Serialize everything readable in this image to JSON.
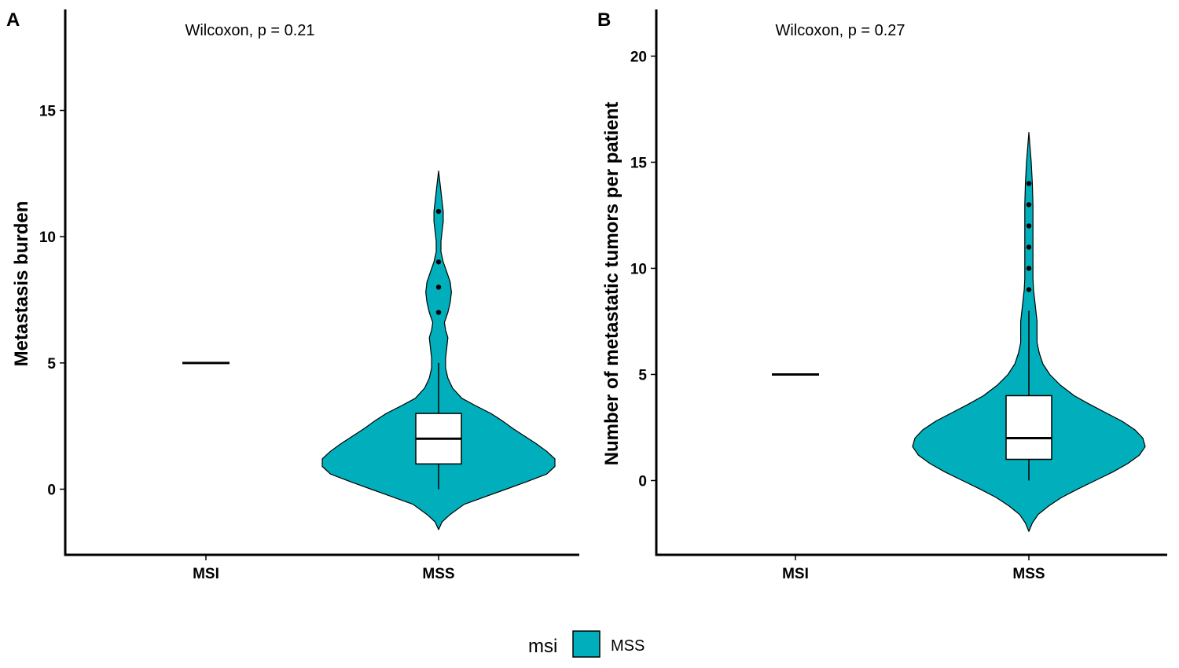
{
  "chart_data": [
    {
      "panel": "A",
      "type": "violin",
      "title": "",
      "annotation": "Wilcoxon, p = 0.21",
      "xlabel": "",
      "ylabel": "Metastasis burden",
      "categories": [
        "MSI",
        "MSS"
      ],
      "yticks": [
        0,
        5,
        10,
        15
      ],
      "ylim": [
        -2.6,
        19.0
      ],
      "groups": [
        {
          "name": "MSI",
          "single_value": 5
        },
        {
          "name": "MSS",
          "violin": {
            "range": [
              -1.6,
              12.6
            ],
            "profile": [
              [
                -1.6,
                0.0
              ],
              [
                -1.3,
                0.03
              ],
              [
                -1.0,
                0.1
              ],
              [
                -0.6,
                0.22
              ],
              [
                -0.3,
                0.4
              ],
              [
                0.0,
                0.58
              ],
              [
                0.3,
                0.76
              ],
              [
                0.6,
                0.93
              ],
              [
                0.9,
                1.0
              ],
              [
                1.2,
                1.0
              ],
              [
                1.5,
                0.93
              ],
              [
                1.8,
                0.84
              ],
              [
                2.1,
                0.74
              ],
              [
                2.4,
                0.64
              ],
              [
                2.7,
                0.55
              ],
              [
                3.0,
                0.45
              ],
              [
                3.3,
                0.32
              ],
              [
                3.6,
                0.2
              ],
              [
                4.0,
                0.12
              ],
              [
                4.4,
                0.08
              ],
              [
                4.8,
                0.06
              ],
              [
                5.2,
                0.06
              ],
              [
                5.6,
                0.07
              ],
              [
                6.0,
                0.08
              ],
              [
                6.3,
                0.06
              ],
              [
                6.6,
                0.05
              ],
              [
                7.0,
                0.08
              ],
              [
                7.4,
                0.1
              ],
              [
                7.8,
                0.11
              ],
              [
                8.2,
                0.1
              ],
              [
                8.6,
                0.07
              ],
              [
                9.0,
                0.04
              ],
              [
                9.4,
                0.02
              ],
              [
                9.8,
                0.02
              ],
              [
                10.2,
                0.03
              ],
              [
                10.6,
                0.04
              ],
              [
                11.0,
                0.04
              ],
              [
                11.4,
                0.03
              ],
              [
                11.8,
                0.02
              ],
              [
                12.2,
                0.01
              ],
              [
                12.6,
                0.0
              ]
            ]
          },
          "box": {
            "whisker_low": 0,
            "q1": 1,
            "median": 2,
            "q3": 3,
            "whisker_high": 5
          },
          "outliers": [
            7,
            8,
            9,
            11
          ]
        }
      ]
    },
    {
      "panel": "B",
      "type": "violin",
      "title": "",
      "annotation": "Wilcoxon, p = 0.27",
      "xlabel": "",
      "ylabel": "Number of metastatic tumors per patient",
      "categories": [
        "MSI",
        "MSS"
      ],
      "yticks": [
        0,
        5,
        10,
        15,
        20
      ],
      "ylim": [
        -3.5,
        22.2
      ],
      "groups": [
        {
          "name": "MSI",
          "single_value": 5
        },
        {
          "name": "MSS",
          "violin": {
            "range": [
              -2.4,
              16.4
            ],
            "profile": [
              [
                -2.4,
                0.0
              ],
              [
                -2.0,
                0.03
              ],
              [
                -1.6,
                0.08
              ],
              [
                -1.2,
                0.17
              ],
              [
                -0.8,
                0.28
              ],
              [
                -0.4,
                0.42
              ],
              [
                0.0,
                0.57
              ],
              [
                0.4,
                0.72
              ],
              [
                0.8,
                0.85
              ],
              [
                1.2,
                0.95
              ],
              [
                1.6,
                1.0
              ],
              [
                2.0,
                0.98
              ],
              [
                2.4,
                0.91
              ],
              [
                2.8,
                0.8
              ],
              [
                3.2,
                0.66
              ],
              [
                3.6,
                0.52
              ],
              [
                4.0,
                0.39
              ],
              [
                4.5,
                0.27
              ],
              [
                5.0,
                0.18
              ],
              [
                5.5,
                0.12
              ],
              [
                6.0,
                0.09
              ],
              [
                6.5,
                0.07
              ],
              [
                7.0,
                0.07
              ],
              [
                7.5,
                0.07
              ],
              [
                8.0,
                0.06
              ],
              [
                8.5,
                0.05
              ],
              [
                9.0,
                0.04
              ],
              [
                9.5,
                0.035
              ],
              [
                10.0,
                0.035
              ],
              [
                11.0,
                0.035
              ],
              [
                12.0,
                0.035
              ],
              [
                13.0,
                0.035
              ],
              [
                14.0,
                0.03
              ],
              [
                15.0,
                0.02
              ],
              [
                15.7,
                0.01
              ],
              [
                16.4,
                0.0
              ]
            ]
          },
          "box": {
            "whisker_low": 0,
            "q1": 1,
            "median": 2,
            "q3": 4,
            "whisker_high": 8
          },
          "outliers": [
            9,
            10,
            11,
            12,
            13,
            14
          ]
        }
      ]
    }
  ],
  "legend": {
    "title": "msi",
    "entries": [
      {
        "label": "MSS",
        "color": "#00AFBB"
      }
    ],
    "position": "bottom"
  },
  "colors": {
    "violin_fill": "#00AFBB",
    "box_fill": "#ffffff",
    "stroke": "#000000"
  }
}
